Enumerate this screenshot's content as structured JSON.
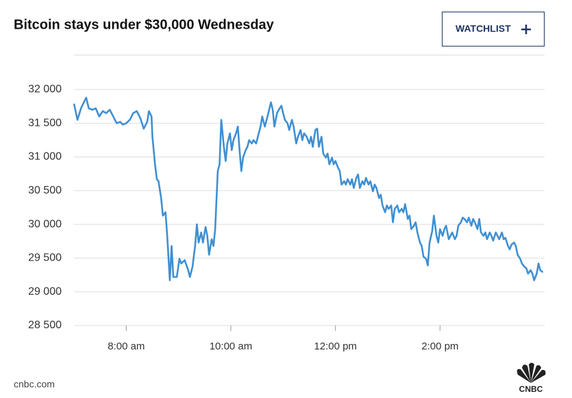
{
  "chart_data": {
    "type": "line",
    "title": "Bitcoin stays under $30,000 Wednesday",
    "button": "WATCHLIST",
    "source": "cnbc.com",
    "logo": "CNBC",
    "color": "#3f8fd2",
    "grid": true,
    "xlim": [
      420,
      960
    ],
    "xticks": [
      {
        "value": 480,
        "label": "8:00 am"
      },
      {
        "value": 600,
        "label": "10:00 am"
      },
      {
        "value": 720,
        "label": "12:00 pm"
      },
      {
        "value": 840,
        "label": "2:00 pm"
      }
    ],
    "ylim": [
      28500,
      32500
    ],
    "yticks": [
      {
        "value": 28500,
        "label": "28 500"
      },
      {
        "value": 29000,
        "label": "29 000"
      },
      {
        "value": 29500,
        "label": "29 500"
      },
      {
        "value": 30000,
        "label": "30 000"
      },
      {
        "value": 30500,
        "label": "30 500"
      },
      {
        "value": 31000,
        "label": "31 000"
      },
      {
        "value": 31500,
        "label": "31 500"
      },
      {
        "value": 32000,
        "label": "32 000"
      }
    ],
    "x": [
      420,
      424,
      428,
      432,
      434,
      437,
      441,
      445,
      449,
      453,
      457,
      461,
      465,
      469,
      473,
      476,
      480,
      484,
      488,
      492,
      496,
      500,
      504,
      506,
      509,
      510,
      513,
      515,
      517,
      520,
      522,
      525,
      527,
      530,
      532,
      534,
      538,
      541,
      543,
      547,
      551,
      553,
      556,
      559,
      561,
      563,
      566,
      568,
      571,
      573,
      575,
      578,
      580,
      582,
      585,
      587,
      589,
      592,
      594,
      596,
      599,
      601,
      603,
      606,
      608,
      610,
      612,
      614,
      617,
      619,
      621,
      624,
      626,
      629,
      632,
      634,
      636,
      639,
      641,
      643,
      646,
      648,
      650,
      653,
      655,
      658,
      660,
      662,
      665,
      667,
      670,
      672,
      675,
      677,
      680,
      682,
      684,
      687,
      690,
      692,
      694,
      697,
      699,
      701,
      704,
      706,
      709,
      711,
      713,
      716,
      718,
      720,
      723,
      725,
      727,
      730,
      732,
      734,
      737,
      739,
      741,
      744,
      746,
      748,
      751,
      753,
      755,
      758,
      760,
      763,
      765,
      767,
      770,
      772,
      774,
      777,
      779,
      781,
      784,
      786,
      788,
      791,
      793,
      796,
      798,
      800,
      803,
      805,
      807,
      810,
      812,
      814,
      817,
      819,
      821,
      824,
      826,
      828,
      831,
      833,
      836,
      838,
      840,
      843,
      845,
      847,
      850,
      852,
      854,
      857,
      859,
      861,
      864,
      866,
      868,
      871,
      873,
      876,
      878,
      880,
      883,
      885,
      887,
      890,
      892,
      894,
      897,
      899,
      901,
      904,
      906,
      908,
      911,
      913,
      915,
      918,
      920,
      922,
      925,
      927,
      929,
      932,
      934,
      937,
      939,
      941,
      944,
      946,
      948,
      951,
      953,
      955,
      958
    ],
    "values": [
      31790,
      31550,
      31720,
      31830,
      31880,
      31720,
      31700,
      31720,
      31600,
      31680,
      31650,
      31700,
      31600,
      31500,
      31520,
      31480,
      31500,
      31550,
      31650,
      31680,
      31580,
      31420,
      31520,
      31680,
      31600,
      31300,
      30890,
      30670,
      30640,
      30390,
      30130,
      30180,
      29830,
      29170,
      29680,
      29220,
      29220,
      29490,
      29420,
      29470,
      29320,
      29220,
      29370,
      29680,
      30000,
      29730,
      29880,
      29730,
      29960,
      29830,
      29550,
      29780,
      29680,
      29930,
      30790,
      30890,
      31550,
      31150,
      30940,
      31200,
      31350,
      31100,
      31250,
      31350,
      31450,
      31100,
      30790,
      30990,
      31100,
      31150,
      31250,
      31200,
      31250,
      31200,
      31350,
      31450,
      31600,
      31450,
      31550,
      31650,
      31810,
      31700,
      31450,
      31650,
      31700,
      31760,
      31650,
      31550,
      31500,
      31400,
      31550,
      31450,
      31200,
      31300,
      31400,
      31250,
      31350,
      31300,
      31200,
      31300,
      31150,
      31400,
      31420,
      31150,
      31300,
      31050,
      30990,
      31050,
      30890,
      30990,
      30890,
      30940,
      30840,
      30790,
      30590,
      30640,
      30590,
      30670,
      30590,
      30670,
      30540,
      30690,
      30740,
      30540,
      30640,
      30590,
      30690,
      30590,
      30640,
      30490,
      30590,
      30540,
      30390,
      30440,
      30280,
      30180,
      30280,
      30230,
      30280,
      30030,
      30230,
      30280,
      30180,
      30230,
      30180,
      30300,
      30080,
      30130,
      29930,
      29980,
      30030,
      29880,
      29730,
      29680,
      29520,
      29490,
      29390,
      29730,
      29900,
      30130,
      29830,
      29730,
      29930,
      29830,
      29930,
      29980,
      29780,
      29830,
      29880,
      29780,
      29830,
      29980,
      30030,
      30100,
      30080,
      30030,
      30100,
      29980,
      30080,
      30030,
      29930,
      30080,
      29880,
      29830,
      29880,
      29780,
      29880,
      29830,
      29760,
      29880,
      29830,
      29780,
      29880,
      29780,
      29800,
      29680,
      29630,
      29700,
      29730,
      29680,
      29550,
      29490,
      29420,
      29370,
      29350,
      29270,
      29320,
      29270,
      29170,
      29270,
      29420,
      29320,
      29290
    ]
  }
}
